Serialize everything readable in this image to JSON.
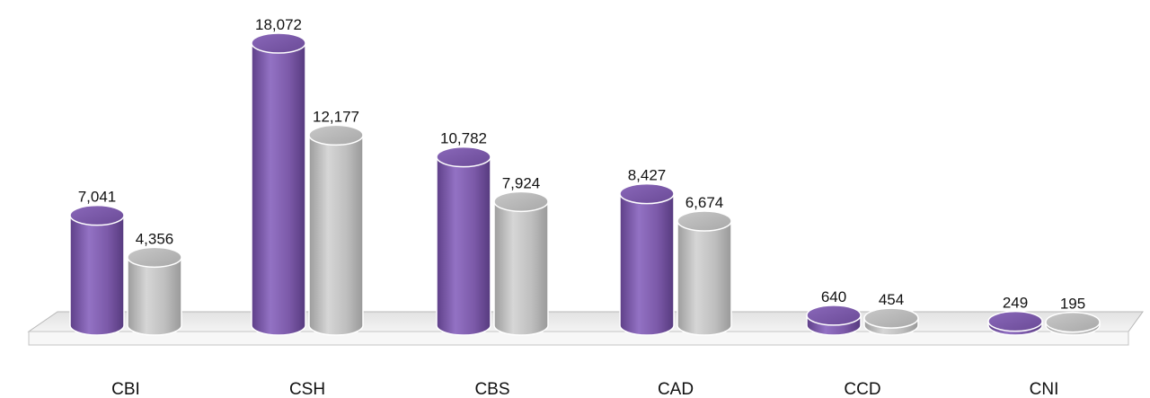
{
  "chart_data": {
    "type": "bar",
    "style": "3d-cylinder",
    "categories": [
      "CBI",
      "CSH",
      "CBS",
      "CAD",
      "CCD",
      "CNI"
    ],
    "series": [
      {
        "values": [
          7041,
          18072,
          10782,
          8427,
          640,
          249
        ],
        "color": "#7d5ca8"
      },
      {
        "values": [
          4356,
          12177,
          7924,
          6674,
          454,
          195
        ],
        "color": "#bdbdbd"
      }
    ],
    "data_labels": [
      [
        "7,041",
        "18,072",
        "10,782",
        "8,427",
        "640",
        "249"
      ],
      [
        "4,356",
        "12,177",
        "7,924",
        "6,674",
        "454",
        "195"
      ]
    ],
    "title": "",
    "xlabel": "",
    "ylabel": "",
    "ylim": [
      0,
      18072
    ],
    "grid": false,
    "legend": "none"
  }
}
